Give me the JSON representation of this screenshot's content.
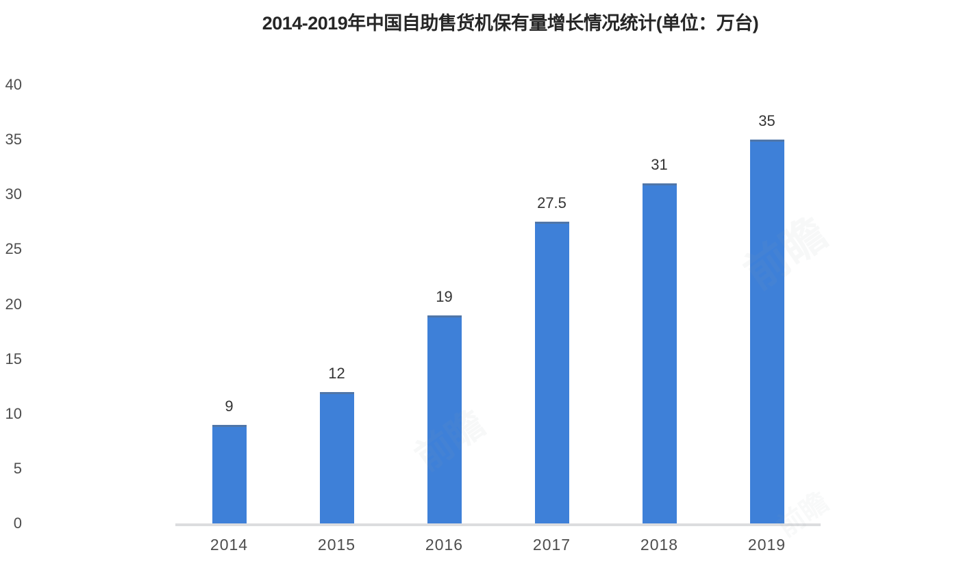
{
  "chart_data": {
    "type": "bar",
    "title": "2014-2019年中国自助售货机保有量增长情况统计(单位：万台)",
    "categories": [
      "2014",
      "2015",
      "2016",
      "2017",
      "2018",
      "2019"
    ],
    "values": [
      9,
      12,
      19,
      27.5,
      31,
      35
    ],
    "value_labels": [
      "9",
      "12",
      "19",
      "27.5",
      "31",
      "35"
    ],
    "xlabel": "",
    "ylabel": "",
    "ylim": [
      0,
      40
    ],
    "yticks": [
      0,
      5,
      10,
      15,
      20,
      25,
      30,
      35,
      40
    ],
    "grid": false,
    "legend": "none",
    "bar_color": "#3E80D8",
    "baseline_color": "#dcdddf",
    "text_color": "#4d4d4d"
  },
  "watermark": {
    "text": "前瞻"
  }
}
